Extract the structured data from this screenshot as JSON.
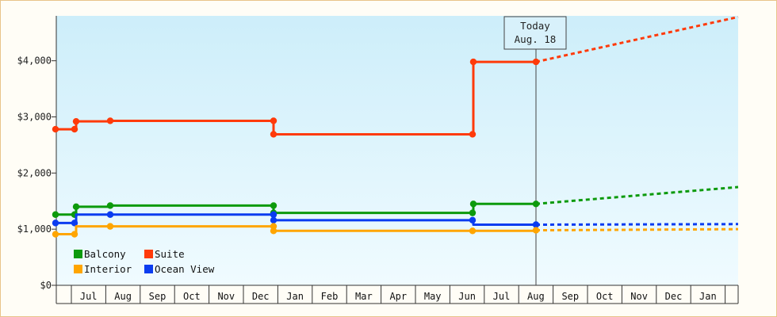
{
  "chart_data": {
    "type": "line",
    "title": "",
    "xlabel": "",
    "ylabel": "",
    "ylim": [
      0,
      4800
    ],
    "yticks": [
      {
        "value": 0,
        "label": "$0"
      },
      {
        "value": 1000,
        "label": "$1,000"
      },
      {
        "value": 2000,
        "label": "$2,000"
      },
      {
        "value": 3000,
        "label": "$3,000"
      },
      {
        "value": 4000,
        "label": "$4,000"
      }
    ],
    "x_months": [
      "",
      "Jul",
      "Aug",
      "Sep",
      "Oct",
      "Nov",
      "Dec",
      "Jan",
      "Feb",
      "Mar",
      "Apr",
      "May",
      "Jun",
      "Jul",
      "Aug",
      "Sep",
      "Oct",
      "Nov",
      "Dec",
      "Jan",
      ""
    ],
    "today": {
      "line1": "Today",
      "line2": "Aug. 18",
      "x": 14.5
    },
    "legend": {
      "placement": "bottom-left",
      "columns": 2
    },
    "background": {
      "top": "#cdeefa",
      "bottom": "#f0fbff"
    },
    "series": [
      {
        "name": "Suite",
        "color": "#ff3a0a",
        "points": [
          [
            0.0,
            2780
          ],
          [
            0.55,
            2780
          ],
          [
            0.6,
            2920
          ],
          [
            1.6,
            2930
          ],
          [
            6.4,
            2930
          ],
          [
            6.45,
            2690
          ],
          [
            12.2,
            2690
          ],
          [
            12.25,
            3980
          ],
          [
            14.4,
            3980
          ]
        ],
        "markers": [
          [
            0.0,
            2780
          ],
          [
            0.55,
            2780
          ],
          [
            0.6,
            2920
          ],
          [
            1.6,
            2930
          ],
          [
            6.4,
            2930
          ],
          [
            6.45,
            2690
          ],
          [
            12.2,
            2690
          ],
          [
            12.25,
            3980
          ],
          [
            14.4,
            3980
          ]
        ],
        "forecast": [
          [
            14.4,
            3980
          ],
          [
            20.5,
            4780
          ]
        ]
      },
      {
        "name": "Balcony",
        "color": "#0c9a0c",
        "points": [
          [
            0.0,
            1260
          ],
          [
            0.55,
            1260
          ],
          [
            0.6,
            1400
          ],
          [
            1.6,
            1420
          ],
          [
            6.4,
            1420
          ],
          [
            6.45,
            1290
          ],
          [
            12.2,
            1290
          ],
          [
            12.25,
            1450
          ],
          [
            14.4,
            1450
          ]
        ],
        "markers": [
          [
            0.0,
            1260
          ],
          [
            0.55,
            1260
          ],
          [
            0.6,
            1400
          ],
          [
            1.6,
            1420
          ],
          [
            6.4,
            1420
          ],
          [
            6.45,
            1290
          ],
          [
            12.2,
            1290
          ],
          [
            12.25,
            1450
          ],
          [
            14.4,
            1450
          ]
        ],
        "forecast": [
          [
            14.4,
            1450
          ],
          [
            20.5,
            1750
          ]
        ]
      },
      {
        "name": "Ocean View",
        "color": "#0a3cf0",
        "points": [
          [
            0.0,
            1110
          ],
          [
            0.55,
            1110
          ],
          [
            0.6,
            1260
          ],
          [
            1.6,
            1260
          ],
          [
            6.4,
            1260
          ],
          [
            6.45,
            1160
          ],
          [
            12.2,
            1160
          ],
          [
            12.25,
            1080
          ],
          [
            14.4,
            1080
          ]
        ],
        "markers": [
          [
            0.0,
            1110
          ],
          [
            0.55,
            1110
          ],
          [
            1.6,
            1260
          ],
          [
            6.4,
            1260
          ],
          [
            6.45,
            1160
          ],
          [
            12.2,
            1160
          ],
          [
            14.4,
            1080
          ]
        ],
        "forecast": [
          [
            14.4,
            1080
          ],
          [
            20.5,
            1090
          ]
        ]
      },
      {
        "name": "Interior",
        "color": "#ffa500",
        "points": [
          [
            0.0,
            910
          ],
          [
            0.55,
            910
          ],
          [
            0.6,
            1050
          ],
          [
            1.6,
            1050
          ],
          [
            6.4,
            1050
          ],
          [
            6.45,
            970
          ],
          [
            12.2,
            970
          ],
          [
            14.4,
            980
          ]
        ],
        "markers": [
          [
            0.0,
            910
          ],
          [
            0.55,
            910
          ],
          [
            1.6,
            1050
          ],
          [
            6.4,
            1050
          ],
          [
            6.45,
            970
          ],
          [
            12.2,
            970
          ],
          [
            14.4,
            980
          ]
        ],
        "forecast": [
          [
            14.4,
            980
          ],
          [
            20.5,
            1000
          ]
        ]
      }
    ],
    "legend_order": [
      "Balcony",
      "Suite",
      "Interior",
      "Ocean View"
    ]
  }
}
